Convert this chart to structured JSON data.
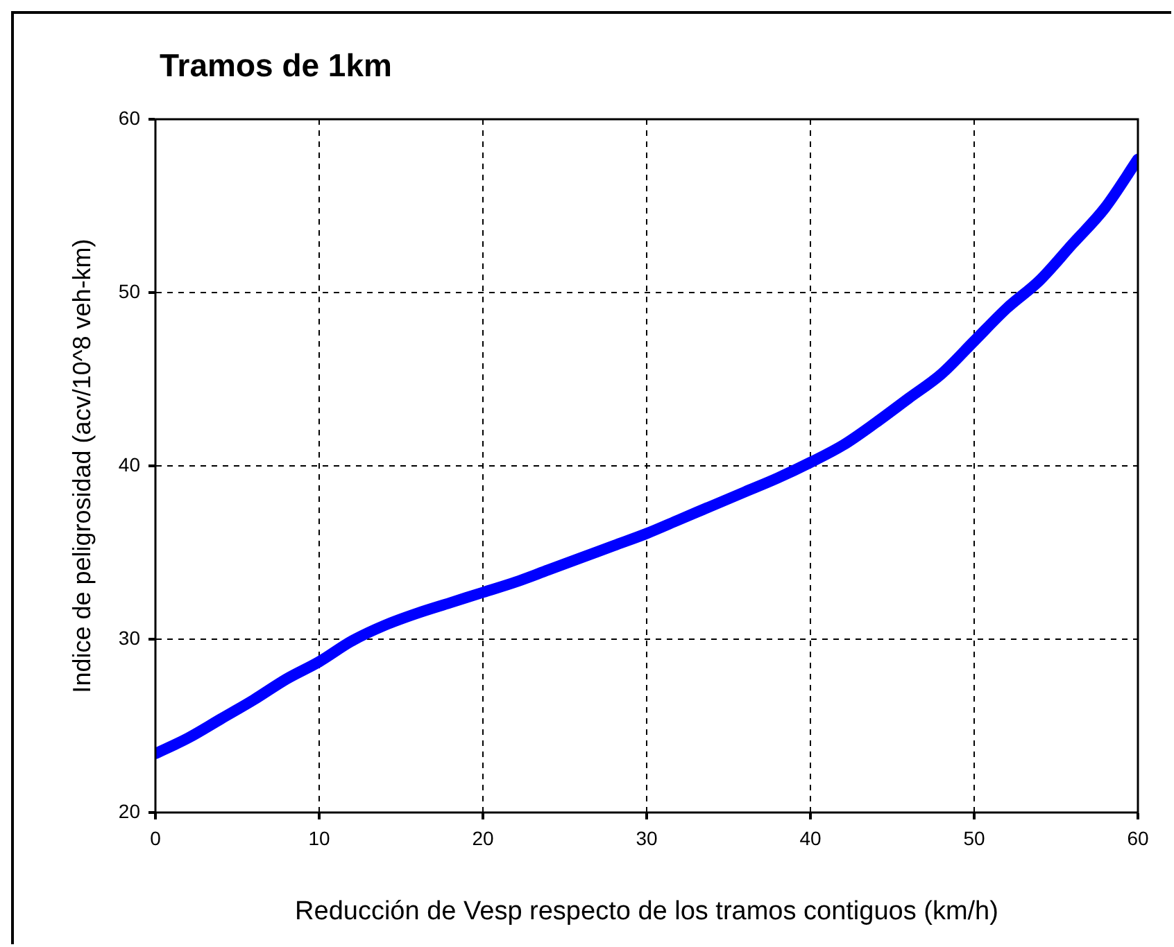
{
  "chart_data": {
    "type": "line",
    "title": "Tramos de 1km",
    "xlabel": "Reducción de Vesp respecto de los tramos contiguos (km/h)",
    "ylabel": "Indice de peligrosidad (acv/10^8 veh-km)",
    "x": [
      0,
      2,
      4,
      6,
      8,
      10,
      12,
      14,
      16,
      18,
      20,
      22,
      24,
      26,
      28,
      30,
      32,
      34,
      36,
      38,
      40,
      42,
      44,
      46,
      48,
      50,
      52,
      54,
      56,
      58,
      60
    ],
    "series": [
      {
        "color": "#0000ff",
        "values": [
          23.4,
          24.3,
          25.4,
          26.5,
          27.7,
          28.7,
          29.9,
          30.8,
          31.5,
          32.1,
          32.7,
          33.3,
          34.0,
          34.7,
          35.4,
          36.1,
          36.9,
          37.7,
          38.5,
          39.3,
          40.2,
          41.2,
          42.5,
          43.9,
          45.3,
          47.2,
          49.1,
          50.7,
          52.8,
          54.9,
          57.7
        ]
      }
    ],
    "xlim": [
      0,
      60
    ],
    "xticks": [
      0,
      10,
      20,
      30,
      40,
      50,
      60
    ],
    "ylim": [
      20,
      60
    ],
    "yticks": [
      20,
      30,
      40,
      50,
      60
    ],
    "grid": true,
    "legend": false,
    "marker": "none",
    "line_style": "solid"
  }
}
